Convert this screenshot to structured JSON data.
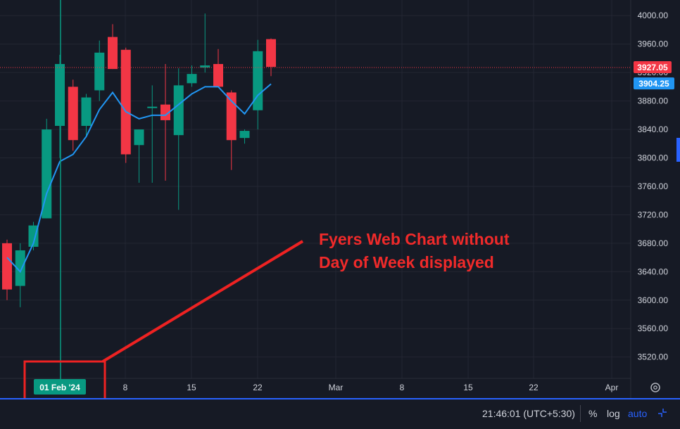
{
  "chart_data": {
    "type": "candlestick",
    "x_tick_labels": [
      "8",
      "15",
      "22",
      "Mar",
      "8",
      "15",
      "22",
      "Apr"
    ],
    "crosshair_date_label": "01 Feb '24",
    "y_ticks": [
      3520,
      3560,
      3600,
      3640,
      3680,
      3720,
      3760,
      3800,
      3840,
      3880,
      3920,
      3960,
      4000
    ],
    "y_tick_labels": [
      "3520.00",
      "3560.00",
      "3600.00",
      "3640.00",
      "3680.00",
      "3720.00",
      "3760.00",
      "3800.00",
      "3840.00",
      "3880.00",
      "3920.00",
      "3960.00",
      "4000.00"
    ],
    "ylim": [
      3490,
      4022
    ],
    "last_price": 3927.05,
    "last_price_label": "3927.05",
    "ma_value_label": "3904.25",
    "candles": [
      {
        "o": 3680,
        "h": 3685,
        "l": 3600,
        "c": 3615
      },
      {
        "o": 3620,
        "h": 3680,
        "l": 3590,
        "c": 3670
      },
      {
        "o": 3675,
        "h": 3710,
        "l": 3670,
        "c": 3705
      },
      {
        "o": 3715,
        "h": 3855,
        "l": 3715,
        "c": 3840
      },
      {
        "o": 3845,
        "h": 3945,
        "l": 3800,
        "c": 3932
      },
      {
        "o": 3900,
        "h": 3910,
        "l": 3810,
        "c": 3825
      },
      {
        "o": 3845,
        "h": 3890,
        "l": 3830,
        "c": 3885
      },
      {
        "o": 3895,
        "h": 3965,
        "l": 3880,
        "c": 3948
      },
      {
        "o": 3970,
        "h": 3988,
        "l": 3925,
        "c": 3925
      },
      {
        "o": 3952,
        "h": 3955,
        "l": 3793,
        "c": 3805
      },
      {
        "o": 3818,
        "h": 3840,
        "l": 3765,
        "c": 3840
      },
      {
        "o": 3870,
        "h": 3902,
        "l": 3765,
        "c": 3872
      },
      {
        "o": 3875,
        "h": 3932,
        "l": 3768,
        "c": 3853
      },
      {
        "o": 3832,
        "h": 3926,
        "l": 3727,
        "c": 3902
      },
      {
        "o": 3905,
        "h": 3930,
        "l": 3900,
        "c": 3918
      },
      {
        "o": 3927,
        "h": 4003,
        "l": 3920,
        "c": 3930
      },
      {
        "o": 3932,
        "h": 3953,
        "l": 3900,
        "c": 3900
      },
      {
        "o": 3892,
        "h": 3895,
        "l": 3783,
        "c": 3825
      },
      {
        "o": 3828,
        "h": 3840,
        "l": 3820,
        "c": 3838
      },
      {
        "o": 3867,
        "h": 3966,
        "l": 3840,
        "c": 3950
      },
      {
        "o": 3967,
        "h": 3968,
        "l": 3915,
        "c": 3928
      }
    ],
    "ma": [
      3660,
      3640,
      3680,
      3750,
      3795,
      3805,
      3830,
      3868,
      3892,
      3865,
      3855,
      3860,
      3860,
      3875,
      3890,
      3900,
      3900,
      3880,
      3862,
      3888,
      3904
    ]
  },
  "annotation": {
    "line1": "Fyers Web Chart without",
    "line2": "Day of Week displayed"
  },
  "bottom_bar": {
    "time": "21:46:01 (UTC+5:30)",
    "percent": "%",
    "log": "log",
    "auto": "auto"
  },
  "colors": {
    "up": "#089981",
    "down": "#f23645",
    "ma": "#2196f3",
    "annotation": "#f02a2a",
    "background": "#161a25"
  }
}
